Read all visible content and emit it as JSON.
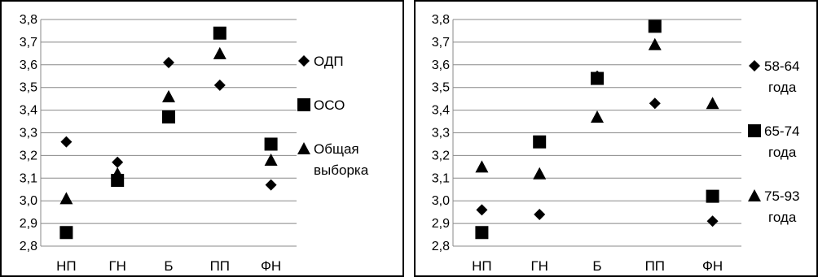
{
  "chart_data": [
    {
      "type": "scatter",
      "categories": [
        "НП",
        "ГН",
        "Б",
        "ПП",
        "ФН"
      ],
      "ylim": [
        2.8,
        3.8
      ],
      "yticks": [
        "2,8",
        "2,9",
        "3,0",
        "3,1",
        "3,2",
        "3,3",
        "3,4",
        "3,5",
        "3,6",
        "3,7",
        "3,8"
      ],
      "grid": "horizontal",
      "legend_position": "right",
      "series": [
        {
          "name": "ОДП",
          "marker": "diamond",
          "values": [
            3.26,
            3.17,
            3.61,
            3.51,
            3.07
          ]
        },
        {
          "name": "ОСО",
          "marker": "square",
          "values": [
            2.86,
            3.09,
            3.37,
            3.74,
            3.25
          ]
        },
        {
          "name": "Общая выборка",
          "marker": "triangle",
          "values": [
            3.01,
            3.12,
            3.46,
            3.65,
            3.18
          ]
        }
      ]
    },
    {
      "type": "scatter",
      "categories": [
        "НП",
        "ГН",
        "Б",
        "ПП",
        "ФН"
      ],
      "ylim": [
        2.8,
        3.8
      ],
      "yticks": [
        "2,8",
        "2,9",
        "3,0",
        "3,1",
        "3,2",
        "3,3",
        "3,4",
        "3,5",
        "3,6",
        "3,7",
        "3,8"
      ],
      "grid": "horizontal",
      "legend_position": "right",
      "series": [
        {
          "name": "58-64 года",
          "marker": "diamond",
          "values": [
            2.96,
            2.94,
            3.55,
            3.43,
            2.91
          ]
        },
        {
          "name": "65-74 года",
          "marker": "square",
          "values": [
            2.86,
            3.26,
            3.54,
            3.77,
            3.02
          ]
        },
        {
          "name": "75-93 года",
          "marker": "triangle",
          "values": [
            3.15,
            3.12,
            3.37,
            3.69,
            3.43
          ]
        }
      ]
    }
  ]
}
